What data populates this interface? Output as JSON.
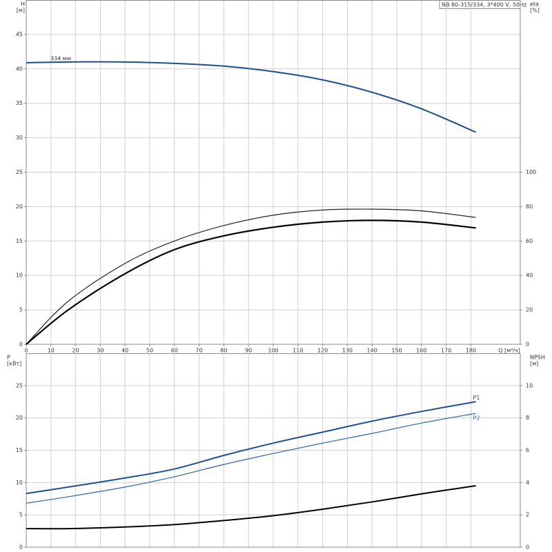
{
  "chart_data": [
    {
      "type": "line",
      "title": "NB 80-315/334, 3*400 V, 50Hz",
      "ylabel": "H",
      "yunit": "[м]",
      "y2label": "eta",
      "y2unit": "[%]",
      "xlabel": "Q [м³/ч]",
      "x": [
        0,
        17,
        40,
        60,
        80,
        100,
        120,
        140,
        160,
        182
      ],
      "xlim": [
        0,
        200
      ],
      "xticks": [
        0,
        10,
        20,
        30,
        40,
        50,
        60,
        70,
        80,
        90,
        100,
        110,
        120,
        130,
        140,
        150,
        160,
        170,
        180
      ],
      "ylim": [
        0,
        50
      ],
      "yticks": [
        0,
        5,
        10,
        15,
        20,
        25,
        30,
        35,
        40,
        45
      ],
      "y2lim": [
        0,
        200
      ],
      "y2ticks": [
        0,
        20,
        40,
        60,
        80,
        100
      ],
      "grid": true,
      "series": [
        {
          "name": "334 мм",
          "color": "#1f4e8c",
          "width": 2,
          "values": [
            40.9,
            41,
            41,
            40.8,
            40.4,
            39.6,
            38.4,
            36.6,
            34.2,
            30.8
          ]
        },
        {
          "color": "#222222",
          "width": 1.2,
          "axis": "y2",
          "values": [
            0,
            25,
            47,
            60,
            69,
            75,
            78,
            78.5,
            77.5,
            73.7
          ]
        },
        {
          "color": "#000000",
          "width": 2.2,
          "axis": "y2",
          "values": [
            0,
            20,
            41,
            55,
            63,
            68,
            71,
            72,
            71,
            67.6
          ]
        }
      ]
    },
    {
      "type": "line",
      "ylabel": "P",
      "yunit": "[кВт]",
      "y2label": "NPSH",
      "y2unit": "[м]",
      "x": [
        0,
        17,
        40,
        60,
        80,
        100,
        120,
        140,
        160,
        182
      ],
      "xlim": [
        0,
        200
      ],
      "ylim": [
        0,
        30
      ],
      "yticks": [
        0,
        5,
        10,
        15,
        20,
        25
      ],
      "y2lim": [
        0,
        12
      ],
      "y2ticks": [
        0,
        2,
        4,
        6,
        8,
        10
      ],
      "grid": true,
      "series": [
        {
          "name": "P1",
          "color": "#1f4e8c",
          "width": 2,
          "values": [
            8.3,
            9.3,
            10.7,
            12.1,
            14.2,
            16.1,
            17.8,
            19.5,
            21,
            22.5
          ]
        },
        {
          "name": "P2",
          "color": "#2a62a5",
          "width": 1.2,
          "values": [
            6.8,
            7.8,
            9.3,
            10.9,
            12.8,
            14.5,
            16.1,
            17.6,
            19.2,
            20.7
          ]
        },
        {
          "color": "#000000",
          "width": 2,
          "axis": "y2",
          "values": [
            1.15,
            1.15,
            1.25,
            1.4,
            1.65,
            1.95,
            2.35,
            2.8,
            3.3,
            3.8
          ]
        }
      ]
    }
  ]
}
